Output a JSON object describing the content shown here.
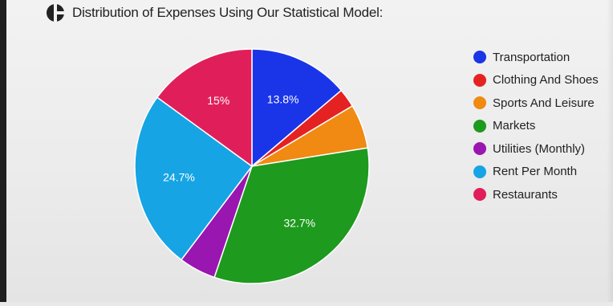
{
  "header": {
    "title": "Distribution of Expenses Using Our Statistical Model:",
    "icon": "logo-icon"
  },
  "chart_data": {
    "type": "pie",
    "title": "Distribution of Expenses Using Our Statistical Model:",
    "legend_position": "right",
    "slices": [
      {
        "name": "Transportation",
        "value": 13.8,
        "label": "13.8%",
        "color": "#1a35e8"
      },
      {
        "name": "Clothing And Shoes",
        "value": 2.6,
        "label": "",
        "color": "#e52222"
      },
      {
        "name": "Sports And Leisure",
        "value": 6.1,
        "label": "",
        "color": "#f08a12"
      },
      {
        "name": "Markets",
        "value": 32.7,
        "label": "32.7%",
        "color": "#1e9a1e"
      },
      {
        "name": "Utilities (Monthly)",
        "value": 5.1,
        "label": "",
        "color": "#9a16b0"
      },
      {
        "name": "Rent Per Month",
        "value": 24.7,
        "label": "24.7%",
        "color": "#16a4e4"
      },
      {
        "name": "Restaurants",
        "value": 15.0,
        "label": "15%",
        "color": "#e01f5a"
      }
    ]
  }
}
